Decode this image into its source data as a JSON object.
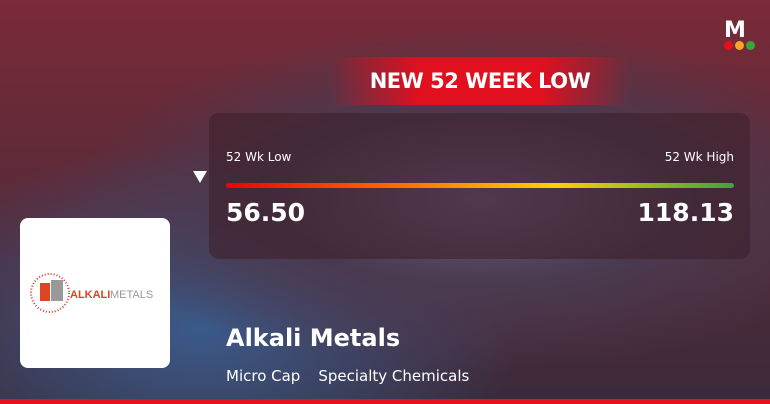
{
  "brand": {
    "logo_letter": "M",
    "dot_colors": [
      "#e8101c",
      "#f5a623",
      "#3aa63a"
    ]
  },
  "banner": {
    "title": "NEW 52 WEEK LOW",
    "color": "#e0101f"
  },
  "range": {
    "low_label": "52 Wk Low",
    "high_label": "52 Wk High",
    "low_value": "56.50",
    "high_value": "118.13",
    "current_position_percent": 0
  },
  "company": {
    "logo_text_1": "ALKALI",
    "logo_text_2": "METALS",
    "name": "Alkali Metals",
    "market_cap": "Micro Cap",
    "sector": "Specialty Chemicals"
  }
}
